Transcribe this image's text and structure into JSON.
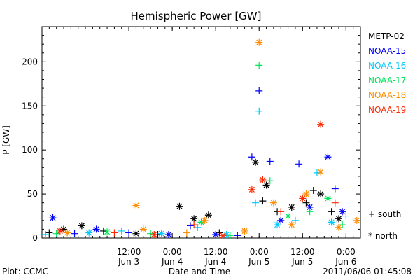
{
  "chart_data": {
    "type": "scatter",
    "title": "Hemispheric Power [GW]",
    "xlabel": "Date and Time",
    "ylabel": "P [GW]",
    "ylim": [
      0,
      240
    ],
    "xlim": [
      "2011-06-02 12:00",
      "2011-06-06 04:00"
    ],
    "y_ticks": [
      0,
      50,
      100,
      150,
      200
    ],
    "x_ticks": [
      {
        "time": "2011-06-03 12:00",
        "line1": "12:00",
        "line2": "Jun 3"
      },
      {
        "time": "2011-06-04 00:00",
        "line1": "0:00",
        "line2": "Jun 4"
      },
      {
        "time": "2011-06-04 12:00",
        "line1": "12:00",
        "line2": "Jun 4"
      },
      {
        "time": "2011-06-05 00:00",
        "line1": "0:00",
        "line2": "Jun 5"
      },
      {
        "time": "2011-06-05 12:00",
        "line1": "12:00",
        "line2": "Jun 5"
      },
      {
        "time": "2011-06-06 00:00",
        "line1": "0:00",
        "line2": "Jun 6"
      }
    ],
    "grid": false,
    "legend_placement": "right",
    "marker_legend": [
      {
        "symbol": "+",
        "label": "south"
      },
      {
        "symbol": "*",
        "label": "north"
      }
    ],
    "series": [
      {
        "name": "METP-02",
        "color": "#000000",
        "points": [
          {
            "t": "2011-06-02 14:00",
            "v": 6,
            "m": "+"
          },
          {
            "t": "2011-06-02 18:00",
            "v": 10,
            "m": "*"
          },
          {
            "t": "2011-06-02 23:00",
            "v": 14,
            "m": "*"
          },
          {
            "t": "2011-06-03 05:00",
            "v": 8,
            "m": "+"
          },
          {
            "t": "2011-06-03 14:00",
            "v": 5,
            "m": "*"
          },
          {
            "t": "2011-06-03 20:00",
            "v": 4,
            "m": "+"
          },
          {
            "t": "2011-06-04 02:00",
            "v": 36,
            "m": "*"
          },
          {
            "t": "2011-06-04 06:00",
            "v": 22,
            "m": "*"
          },
          {
            "t": "2011-06-04 10:00",
            "v": 26,
            "m": "*"
          },
          {
            "t": "2011-06-04 13:00",
            "v": 6,
            "m": "+"
          },
          {
            "t": "2011-06-04 18:00",
            "v": 3,
            "m": "+"
          },
          {
            "t": "2011-06-04 23:00",
            "v": 86,
            "m": "*"
          },
          {
            "t": "2011-06-05 01:00",
            "v": 42,
            "m": "+"
          },
          {
            "t": "2011-06-05 02:00",
            "v": 60,
            "m": "*"
          },
          {
            "t": "2011-06-05 05:00",
            "v": 30,
            "m": "+"
          },
          {
            "t": "2011-06-05 09:00",
            "v": 35,
            "m": "*"
          },
          {
            "t": "2011-06-05 13:00",
            "v": 40,
            "m": "+"
          },
          {
            "t": "2011-06-05 15:00",
            "v": 54,
            "m": "+"
          },
          {
            "t": "2011-06-05 17:00",
            "v": 50,
            "m": "*"
          },
          {
            "t": "2011-06-05 20:00",
            "v": 30,
            "m": "+"
          },
          {
            "t": "2011-06-05 22:00",
            "v": 22,
            "m": "*"
          }
        ]
      },
      {
        "name": "NOAA-15",
        "color": "#0000ff",
        "points": [
          {
            "t": "2011-06-02 15:00",
            "v": 23,
            "m": "*"
          },
          {
            "t": "2011-06-02 21:00",
            "v": 5,
            "m": "+"
          },
          {
            "t": "2011-06-03 03:00",
            "v": 10,
            "m": "*"
          },
          {
            "t": "2011-06-03 12:00",
            "v": 6,
            "m": "+"
          },
          {
            "t": "2011-06-03 23:00",
            "v": 4,
            "m": "*"
          },
          {
            "t": "2011-06-04 05:00",
            "v": 14,
            "m": "+"
          },
          {
            "t": "2011-06-04 12:00",
            "v": 4,
            "m": "*"
          },
          {
            "t": "2011-06-04 18:00",
            "v": 3,
            "m": "+"
          },
          {
            "t": "2011-06-04 22:00",
            "v": 92,
            "m": "+"
          },
          {
            "t": "2011-06-05 00:00",
            "v": 167,
            "m": "+"
          },
          {
            "t": "2011-06-05 03:00",
            "v": 87,
            "m": "+"
          },
          {
            "t": "2011-06-05 06:00",
            "v": 20,
            "m": "*"
          },
          {
            "t": "2011-06-05 11:00",
            "v": 84,
            "m": "+"
          },
          {
            "t": "2011-06-05 14:00",
            "v": 35,
            "m": "*"
          },
          {
            "t": "2011-06-05 19:00",
            "v": 92,
            "m": "*"
          },
          {
            "t": "2011-06-05 21:00",
            "v": 56,
            "m": "+"
          },
          {
            "t": "2011-06-05 23:00",
            "v": 30,
            "m": "*"
          }
        ]
      },
      {
        "name": "NOAA-16",
        "color": "#00c8ff",
        "points": [
          {
            "t": "2011-06-02 13:00",
            "v": 4,
            "m": "+"
          },
          {
            "t": "2011-06-03 01:00",
            "v": 6,
            "m": "*"
          },
          {
            "t": "2011-06-03 10:00",
            "v": 8,
            "m": "+"
          },
          {
            "t": "2011-06-03 21:00",
            "v": 5,
            "m": "*"
          },
          {
            "t": "2011-06-04 07:00",
            "v": 12,
            "m": "+"
          },
          {
            "t": "2011-06-04 15:00",
            "v": 4,
            "m": "*"
          },
          {
            "t": "2011-06-04 23:00",
            "v": 40,
            "m": "+"
          },
          {
            "t": "2011-06-05 00:00",
            "v": 144,
            "m": "+"
          },
          {
            "t": "2011-06-05 05:00",
            "v": 15,
            "m": "*"
          },
          {
            "t": "2011-06-05 10:00",
            "v": 20,
            "m": "+"
          },
          {
            "t": "2011-06-05 16:00",
            "v": 74,
            "m": "+"
          },
          {
            "t": "2011-06-05 20:00",
            "v": 18,
            "m": "*"
          },
          {
            "t": "2011-06-06 00:00",
            "v": 25,
            "m": "+"
          }
        ]
      },
      {
        "name": "NOAA-17",
        "color": "#00e65a",
        "points": [
          {
            "t": "2011-06-02 16:00",
            "v": 5,
            "m": "+"
          },
          {
            "t": "2011-06-03 06:00",
            "v": 7,
            "m": "*"
          },
          {
            "t": "2011-06-03 18:00",
            "v": 5,
            "m": "+"
          },
          {
            "t": "2011-06-04 08:00",
            "v": 18,
            "m": "*"
          },
          {
            "t": "2011-06-04 16:00",
            "v": 3,
            "m": "+"
          },
          {
            "t": "2011-06-05 00:00",
            "v": 196,
            "m": "+"
          },
          {
            "t": "2011-06-05 03:00",
            "v": 65,
            "m": "+"
          },
          {
            "t": "2011-06-05 08:00",
            "v": 25,
            "m": "*"
          },
          {
            "t": "2011-06-05 14:00",
            "v": 30,
            "m": "+"
          },
          {
            "t": "2011-06-05 19:00",
            "v": 45,
            "m": "*"
          },
          {
            "t": "2011-06-05 23:00",
            "v": 15,
            "m": "+"
          }
        ]
      },
      {
        "name": "NOAA-18",
        "color": "#ff8c00",
        "points": [
          {
            "t": "2011-06-02 19:00",
            "v": 6,
            "m": "*"
          },
          {
            "t": "2011-06-03 14:00",
            "v": 37,
            "m": "*"
          },
          {
            "t": "2011-06-03 16:00",
            "v": 10,
            "m": "*"
          },
          {
            "t": "2011-06-04 04:00",
            "v": 6,
            "m": "+"
          },
          {
            "t": "2011-06-04 09:00",
            "v": 20,
            "m": "*"
          },
          {
            "t": "2011-06-04 20:00",
            "v": 8,
            "m": "*"
          },
          {
            "t": "2011-06-05 00:00",
            "v": 222,
            "m": "*"
          },
          {
            "t": "2011-06-05 04:00",
            "v": 40,
            "m": "*"
          },
          {
            "t": "2011-06-05 09:00",
            "v": 15,
            "m": "*"
          },
          {
            "t": "2011-06-05 13:00",
            "v": 50,
            "m": "*"
          },
          {
            "t": "2011-06-05 17:00",
            "v": 75,
            "m": "*"
          },
          {
            "t": "2011-06-05 22:00",
            "v": 12,
            "m": "*"
          },
          {
            "t": "2011-06-06 03:00",
            "v": 20,
            "m": "*"
          }
        ]
      },
      {
        "name": "NOAA-19",
        "color": "#ff2800",
        "points": [
          {
            "t": "2011-06-02 17:00",
            "v": 8,
            "m": "*"
          },
          {
            "t": "2011-06-03 08:00",
            "v": 6,
            "m": "+"
          },
          {
            "t": "2011-06-03 19:00",
            "v": 4,
            "m": "*"
          },
          {
            "t": "2011-06-04 06:00",
            "v": 15,
            "m": "+"
          },
          {
            "t": "2011-06-04 14:00",
            "v": 3,
            "m": "*"
          },
          {
            "t": "2011-06-04 22:00",
            "v": 55,
            "m": "*"
          },
          {
            "t": "2011-06-05 01:00",
            "v": 66,
            "m": "*"
          },
          {
            "t": "2011-06-05 06:00",
            "v": 30,
            "m": "+"
          },
          {
            "t": "2011-06-05 12:00",
            "v": 45,
            "m": "*"
          },
          {
            "t": "2011-06-05 17:00",
            "v": 129,
            "m": "*"
          },
          {
            "t": "2011-06-05 21:00",
            "v": 40,
            "m": "+"
          }
        ]
      }
    ]
  },
  "footer": {
    "left": "Plot: CCMC",
    "right": "2011/06/06 01:45:08"
  }
}
